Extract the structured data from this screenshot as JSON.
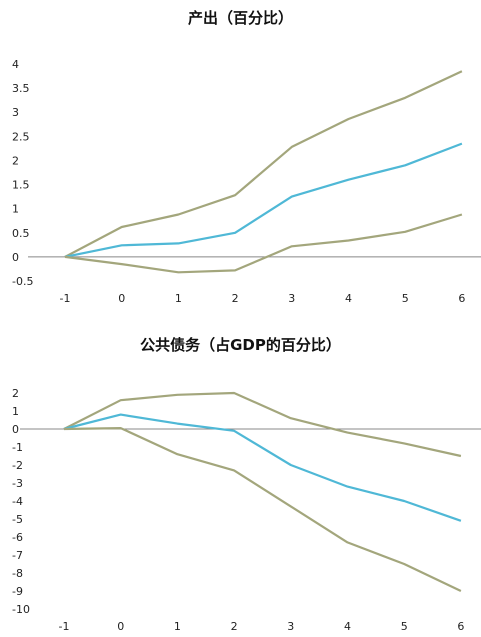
{
  "chart_data": [
    {
      "type": "line",
      "title": "产出（百分比）",
      "x": [
        -1,
        0,
        1,
        2,
        3,
        4,
        5,
        6
      ],
      "y_ticks": [
        "4",
        "3.5",
        "3",
        "2.5",
        "2",
        "1.5",
        "1",
        "0.5",
        "0",
        "-0.5"
      ],
      "ylim": [
        -0.5,
        4
      ],
      "series": [
        {
          "role": "upper",
          "color": "#a3a67c",
          "values": [
            0,
            0.62,
            0.88,
            1.28,
            2.28,
            2.86,
            3.3,
            3.85
          ]
        },
        {
          "role": "central",
          "color": "#4fb8d6",
          "values": [
            0,
            0.24,
            0.28,
            0.5,
            1.25,
            1.6,
            1.9,
            2.35
          ]
        },
        {
          "role": "lower",
          "color": "#a3a67c",
          "values": [
            0,
            -0.15,
            -0.32,
            -0.28,
            0.22,
            0.34,
            0.52,
            0.88
          ]
        }
      ],
      "zero_line": true,
      "grid": false
    },
    {
      "type": "line",
      "title": "公共债务（占GDP的百分比）",
      "x": [
        -1,
        0,
        1,
        2,
        3,
        4,
        5,
        6
      ],
      "y_ticks": [
        "2",
        "1",
        "0",
        "-1",
        "-2",
        "-3",
        "-4",
        "-5",
        "-6",
        "-7",
        "-8",
        "-9",
        "-10"
      ],
      "ylim": [
        -10,
        2
      ],
      "series": [
        {
          "role": "upper",
          "color": "#a3a67c",
          "values": [
            0,
            1.6,
            1.9,
            2.0,
            0.6,
            -0.2,
            -0.8,
            -1.5
          ]
        },
        {
          "role": "central",
          "color": "#4fb8d6",
          "values": [
            0,
            0.8,
            0.3,
            -0.1,
            -2.0,
            -3.2,
            -4.0,
            -5.1
          ]
        },
        {
          "role": "lower",
          "color": "#a3a67c",
          "values": [
            0,
            0.05,
            -1.4,
            -2.3,
            -4.3,
            -6.3,
            -7.5,
            -9.0
          ]
        }
      ],
      "zero_line": true,
      "grid": false
    }
  ]
}
